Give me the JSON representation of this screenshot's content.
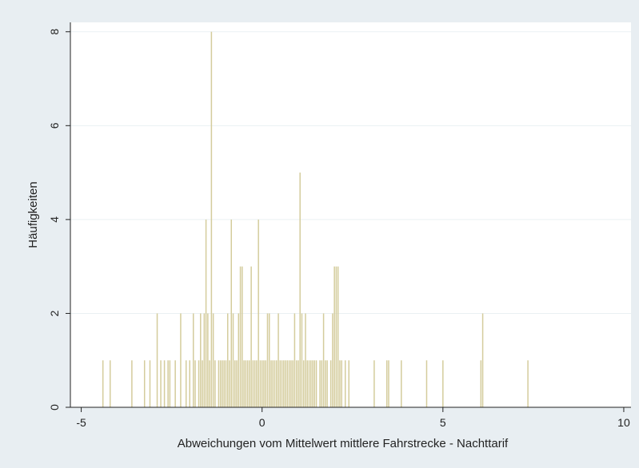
{
  "chart_data": {
    "type": "bar",
    "title": "",
    "xlabel": "Abweichungen vom Mittelwert mittlere Fahrstrecke - Nachttarif",
    "ylabel": "Häufigkeiten",
    "xlim": [
      -5.3,
      10.2
    ],
    "ylim": [
      0,
      8.2
    ],
    "xticks": [
      -5,
      0,
      5,
      10
    ],
    "yticks": [
      0,
      2,
      4,
      6,
      8
    ],
    "grid": true,
    "legend": "none",
    "colors": {
      "bar": "#d4cc9c",
      "plot_background": "#ffffff",
      "outer_background": "#e8eef2",
      "grid": "#eaf0f3",
      "axis": "#222222"
    },
    "series": [
      {
        "x": [
          -4.4,
          -4.2,
          -3.6,
          -3.25,
          -3.1,
          -2.9,
          -2.8,
          -2.7,
          -2.6,
          -2.55,
          -2.4,
          -2.25,
          -2.1,
          -2.0,
          -1.9,
          -1.85,
          -1.75,
          -1.7,
          -1.65,
          -1.6,
          -1.55,
          -1.5,
          -1.45,
          -1.4,
          -1.35,
          -1.3,
          -1.2,
          -1.15,
          -1.1,
          -1.05,
          -1.0,
          -0.95,
          -0.9,
          -0.85,
          -0.8,
          -0.75,
          -0.7,
          -0.65,
          -0.6,
          -0.55,
          -0.5,
          -0.45,
          -0.4,
          -0.35,
          -0.3,
          -0.25,
          -0.2,
          -0.15,
          -0.1,
          -0.05,
          0.0,
          0.05,
          0.1,
          0.15,
          0.2,
          0.25,
          0.3,
          0.35,
          0.4,
          0.45,
          0.5,
          0.55,
          0.6,
          0.65,
          0.7,
          0.75,
          0.8,
          0.85,
          0.9,
          0.95,
          1.0,
          1.05,
          1.1,
          1.15,
          1.2,
          1.25,
          1.3,
          1.35,
          1.4,
          1.45,
          1.5,
          1.6,
          1.65,
          1.7,
          1.75,
          1.8,
          1.9,
          1.95,
          2.0,
          2.05,
          2.1,
          2.15,
          2.2,
          2.3,
          2.4,
          3.1,
          3.45,
          3.5,
          3.85,
          4.55,
          5.0,
          6.05,
          6.1,
          7.35
        ],
        "values": [
          1,
          1,
          1,
          1,
          1,
          2,
          1,
          1,
          1,
          1,
          1,
          2,
          1,
          1,
          2,
          1,
          1,
          2,
          1,
          2,
          4,
          2,
          1,
          8,
          2,
          1,
          1,
          1,
          1,
          1,
          1,
          2,
          1,
          4,
          2,
          1,
          1,
          2,
          3,
          3,
          1,
          1,
          1,
          1,
          3,
          1,
          1,
          1,
          4,
          1,
          1,
          1,
          1,
          2,
          2,
          1,
          1,
          1,
          1,
          2,
          1,
          1,
          1,
          1,
          1,
          1,
          1,
          1,
          2,
          1,
          1,
          5,
          2,
          1,
          2,
          1,
          1,
          1,
          1,
          1,
          1,
          1,
          1,
          2,
          1,
          1,
          1,
          2,
          3,
          3,
          3,
          1,
          1,
          1,
          1,
          1,
          1,
          1,
          1,
          1,
          1,
          1,
          2,
          1
        ]
      }
    ]
  }
}
